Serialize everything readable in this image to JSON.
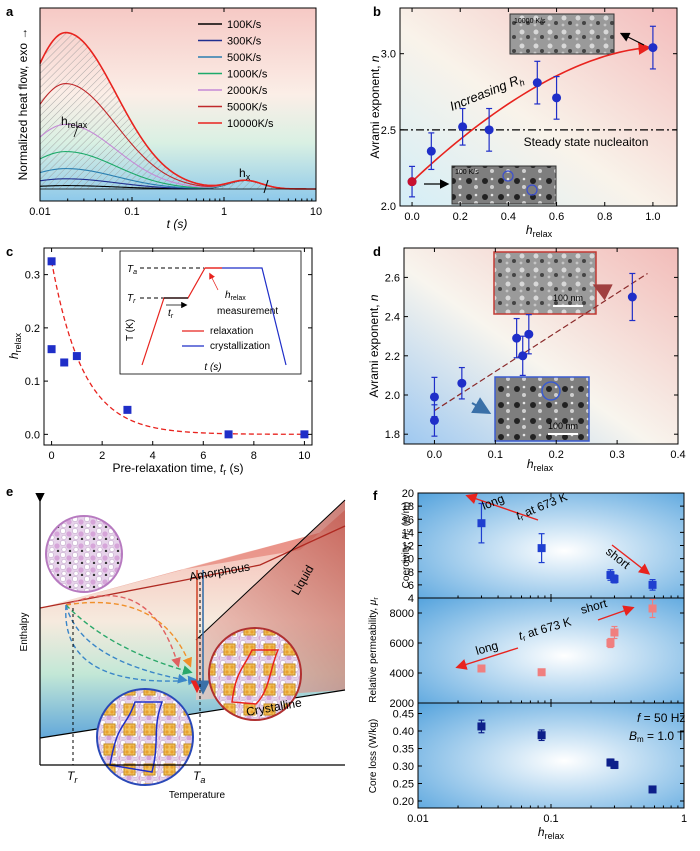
{
  "panels": {
    "a": "a",
    "b": "b",
    "c": "c",
    "d": "d",
    "e": "e",
    "f": "f"
  },
  "colors": {
    "red": "#e8231e",
    "blue": "#1f2ec8",
    "navy": "#0d1f8a",
    "pink": "#f07f7f"
  },
  "chart_data": [
    {
      "id": "a",
      "type": "line",
      "xlabel": "t (s)",
      "ylabel": "Normalized heat flow, exo →",
      "xscale": "log",
      "xlim": [
        0.01,
        10
      ],
      "xticks": [
        "0.01",
        "0.1",
        "1",
        "10"
      ],
      "legend_position": "top-right",
      "annotations": [
        "hrelax",
        "hx"
      ],
      "series": [
        {
          "name": "100K/s",
          "color": "#000000",
          "peak_t": 0.02,
          "peak_h": 0.02
        },
        {
          "name": "300K/s",
          "color": "#1f2e8f",
          "peak_t": 0.02,
          "peak_h": 0.06
        },
        {
          "name": "500K/s",
          "color": "#2a7fb0",
          "peak_t": 0.02,
          "peak_h": 0.12
        },
        {
          "name": "1000K/s",
          "color": "#1daa6a",
          "peak_t": 0.02,
          "peak_h": 0.22
        },
        {
          "name": "2000K/s",
          "color": "#c58ad6",
          "peak_t": 0.02,
          "peak_h": 0.38
        },
        {
          "name": "5000K/s",
          "color": "#c0282b",
          "peak_t": 0.02,
          "peak_h": 0.62
        },
        {
          "name": "10000K/s",
          "color": "#e8231e",
          "peak_t": 0.02,
          "peak_h": 0.92
        }
      ]
    },
    {
      "id": "b",
      "type": "scatter",
      "xlabel": "hrelax",
      "ylabel": "Avrami exponent, n",
      "xlim": [
        -0.05,
        1.1
      ],
      "ylim": [
        2.0,
        3.3
      ],
      "xticks": [
        "0.0",
        "0.2",
        "0.4",
        "0.6",
        "0.8",
        "1.0"
      ],
      "yticks": [
        "2.0",
        "2.5",
        "3.0"
      ],
      "points": [
        {
          "x": 0.0,
          "y": 2.16,
          "err": 0.1
        },
        {
          "x": 0.08,
          "y": 2.36,
          "err": 0.12
        },
        {
          "x": 0.21,
          "y": 2.52,
          "err": 0.12
        },
        {
          "x": 0.32,
          "y": 2.5,
          "err": 0.14
        },
        {
          "x": 0.52,
          "y": 2.81,
          "err": 0.14
        },
        {
          "x": 0.6,
          "y": 2.71,
          "err": 0.14
        },
        {
          "x": 1.0,
          "y": 3.04,
          "err": 0.14
        }
      ],
      "reference_line": {
        "y": 2.5,
        "label": "Steady state nucleaiton"
      },
      "trend_label": "Increasing Rh",
      "inset_labels": [
        "10000 K/s",
        "100 K/s"
      ]
    },
    {
      "id": "c",
      "type": "scatter",
      "xlabel": "Pre-relaxation time, tr (s)",
      "ylabel": "hrelax",
      "xlim": [
        -0.3,
        10.3
      ],
      "ylim": [
        -0.02,
        0.35
      ],
      "xticks": [
        "0",
        "2",
        "4",
        "6",
        "8",
        "10"
      ],
      "yticks": [
        "0.0",
        "0.1",
        "0.2",
        "0.3"
      ],
      "points": [
        {
          "x": 0,
          "y": 0.325
        },
        {
          "x": 0,
          "y": 0.16
        },
        {
          "x": 0.5,
          "y": 0.135
        },
        {
          "x": 1.0,
          "y": 0.147
        },
        {
          "x": 3,
          "y": 0.046
        },
        {
          "x": 7,
          "y": 0.0
        },
        {
          "x": 10,
          "y": 0.0
        }
      ],
      "inset": {
        "ylabel": "T (K)",
        "xlabel": "t (s)",
        "levels": [
          "Ta",
          "Tr"
        ],
        "labels": [
          "tr",
          "hrelax",
          "measurement"
        ],
        "legend": [
          "relaxation",
          "crystallization"
        ]
      }
    },
    {
      "id": "d",
      "type": "scatter",
      "xlabel": "hrelax",
      "ylabel": "Avrami exponent, n",
      "xlim": [
        -0.05,
        0.4
      ],
      "ylim": [
        1.75,
        2.75
      ],
      "xticks": [
        "0.0",
        "0.1",
        "0.2",
        "0.3",
        "0.4"
      ],
      "yticks": [
        "1.8",
        "2.0",
        "2.2",
        "2.4",
        "2.6"
      ],
      "points": [
        {
          "x": 0.0,
          "y": 1.99,
          "err": 0.1
        },
        {
          "x": 0.0,
          "y": 1.87,
          "err": 0.08
        },
        {
          "x": 0.045,
          "y": 2.06,
          "err": 0.08
        },
        {
          "x": 0.135,
          "y": 2.29,
          "err": 0.1
        },
        {
          "x": 0.145,
          "y": 2.2,
          "err": 0.1
        },
        {
          "x": 0.155,
          "y": 2.31,
          "err": 0.1
        },
        {
          "x": 0.325,
          "y": 2.5,
          "err": 0.12
        }
      ],
      "inset_labels": [
        "100 nm",
        "100 nm"
      ]
    },
    {
      "id": "f_top",
      "type": "scatter",
      "ylabel": "Coercivity, Hc (A/m)",
      "xscale": "log",
      "xlim": [
        0.01,
        1
      ],
      "ylim": [
        4,
        20
      ],
      "yticks": [
        "4",
        "6",
        "8",
        "10",
        "12",
        "14",
        "16",
        "18",
        "20"
      ],
      "points": [
        {
          "x": 0.03,
          "y": 15.4,
          "err": 3.0
        },
        {
          "x": 0.085,
          "y": 11.6,
          "err": 2.2
        },
        {
          "x": 0.28,
          "y": 7.5,
          "err": 0.8
        },
        {
          "x": 0.3,
          "y": 6.9,
          "err": 0.6
        },
        {
          "x": 0.58,
          "y": 6.0,
          "err": 0.8
        }
      ],
      "labels": [
        "long",
        "tr at 673 K",
        "short"
      ]
    },
    {
      "id": "f_mid",
      "type": "scatter",
      "ylabel": "Relative permeability, μr",
      "xscale": "log",
      "xlim": [
        0.01,
        1
      ],
      "ylim": [
        2000,
        9000
      ],
      "yticks": [
        "2000",
        "4000",
        "6000",
        "8000"
      ],
      "points": [
        {
          "x": 0.03,
          "y": 4300,
          "err": 0
        },
        {
          "x": 0.085,
          "y": 4050,
          "err": 0
        },
        {
          "x": 0.28,
          "y": 6000,
          "err": 300
        },
        {
          "x": 0.3,
          "y": 6700,
          "err": 400
        },
        {
          "x": 0.58,
          "y": 8300,
          "err": 600
        }
      ],
      "labels": [
        "long",
        "tr at 673 K",
        "short"
      ]
    },
    {
      "id": "f_bot",
      "type": "scatter",
      "xlabel": "hrelax",
      "ylabel": "Core loss (W/kg)",
      "xscale": "log",
      "xlim": [
        0.01,
        1
      ],
      "ylim": [
        0.18,
        0.48
      ],
      "xticks": [
        "0.01",
        "0.1",
        "1"
      ],
      "yticks": [
        "0.20",
        "0.25",
        "0.30",
        "0.35",
        "0.40",
        "0.45"
      ],
      "points": [
        {
          "x": 0.03,
          "y": 0.413,
          "err": 0.018
        },
        {
          "x": 0.085,
          "y": 0.388,
          "err": 0.015
        },
        {
          "x": 0.28,
          "y": 0.31,
          "err": 0.01
        },
        {
          "x": 0.3,
          "y": 0.303,
          "err": 0.01
        },
        {
          "x": 0.58,
          "y": 0.233,
          "err": 0.007
        }
      ],
      "labels": [
        "f = 50 Hz",
        "Bm = 1.0 T"
      ]
    }
  ],
  "diagram_e": {
    "ylabel": "Enthalpy",
    "xlabel": "Temperature",
    "curve_labels": [
      "Amorphous",
      "Liquid",
      "Crystalline"
    ],
    "x_ticks": [
      "Tr",
      "Ta"
    ]
  }
}
